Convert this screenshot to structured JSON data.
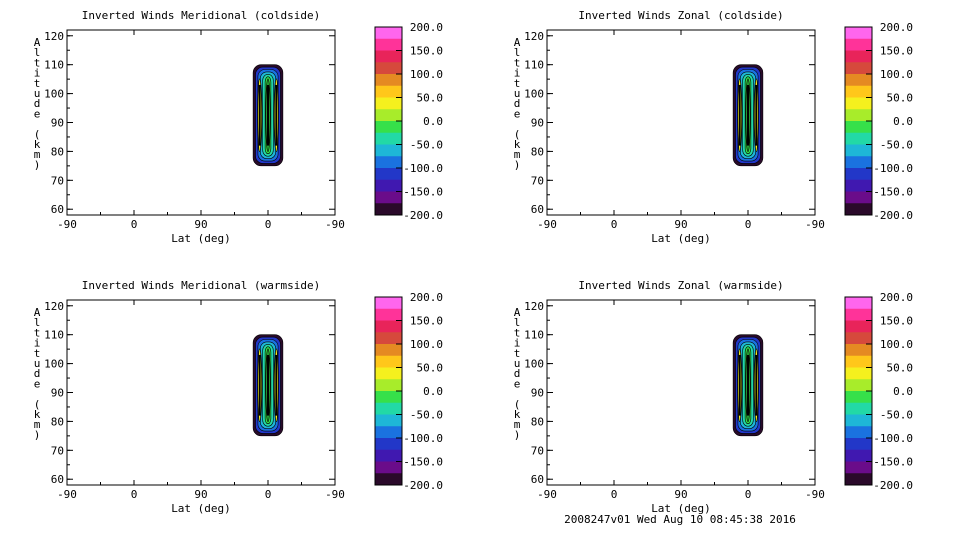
{
  "footer": "2008247v01 Wed Aug 10 08:45:38 2016",
  "colorbar_ticks": [
    "200.0",
    "150.0",
    "100.0",
    "50.0",
    "0.0",
    "-50.0",
    "-100.0",
    "-150.0",
    "-200.0"
  ],
  "colors": [
    "#ff66ee",
    "#ff3399",
    "#e8245a",
    "#d6493c",
    "#e58a22",
    "#ffc71a",
    "#f5f01e",
    "#a8ec2a",
    "#36e04a",
    "#22d9a6",
    "#1eb7d7",
    "#1a72e0",
    "#2237c8",
    "#4018b0",
    "#6a0c8a",
    "#2a0a2a"
  ],
  "chart_data": [
    {
      "type": "contour",
      "title": "Inverted Winds Meridional (coldside)",
      "xlabel": "Lat (deg)",
      "ylabel": "Altitude (km)",
      "xticks": [
        "-90",
        "0",
        "90",
        "0",
        "-90"
      ],
      "yticks": [
        "60",
        "70",
        "80",
        "90",
        "100",
        "110",
        "120"
      ],
      "ylim": [
        58,
        122
      ],
      "zrange": [
        -200,
        200
      ],
      "data_lat_range": [
        -20,
        20
      ],
      "data_alt_range": [
        75,
        110
      ]
    },
    {
      "type": "contour",
      "title": "Inverted Winds Zonal (coldside)",
      "xlabel": "Lat (deg)",
      "ylabel": "Altitude (km)",
      "xticks": [
        "-90",
        "0",
        "90",
        "0",
        "-90"
      ],
      "yticks": [
        "60",
        "70",
        "80",
        "90",
        "100",
        "110",
        "120"
      ],
      "ylim": [
        58,
        122
      ],
      "zrange": [
        -200,
        200
      ],
      "data_lat_range": [
        -20,
        20
      ],
      "data_alt_range": [
        75,
        110
      ]
    },
    {
      "type": "contour",
      "title": "Inverted Winds Meridional (warmside)",
      "xlabel": "Lat (deg)",
      "ylabel": "Altitude (km)",
      "xticks": [
        "-90",
        "0",
        "90",
        "0",
        "-90"
      ],
      "yticks": [
        "60",
        "70",
        "80",
        "90",
        "100",
        "110",
        "120"
      ],
      "ylim": [
        58,
        122
      ],
      "zrange": [
        -200,
        200
      ],
      "data_lat_range": [
        -20,
        20
      ],
      "data_alt_range": [
        75,
        110
      ]
    },
    {
      "type": "contour",
      "title": "Inverted Winds Zonal (warmside)",
      "xlabel": "Lat (deg)",
      "ylabel": "Altitude (km)",
      "xticks": [
        "-90",
        "0",
        "90",
        "0",
        "-90"
      ],
      "yticks": [
        "60",
        "70",
        "80",
        "90",
        "100",
        "110",
        "120"
      ],
      "ylim": [
        58,
        122
      ],
      "zrange": [
        -200,
        200
      ],
      "data_lat_range": [
        -20,
        20
      ],
      "data_alt_range": [
        75,
        110
      ]
    }
  ]
}
